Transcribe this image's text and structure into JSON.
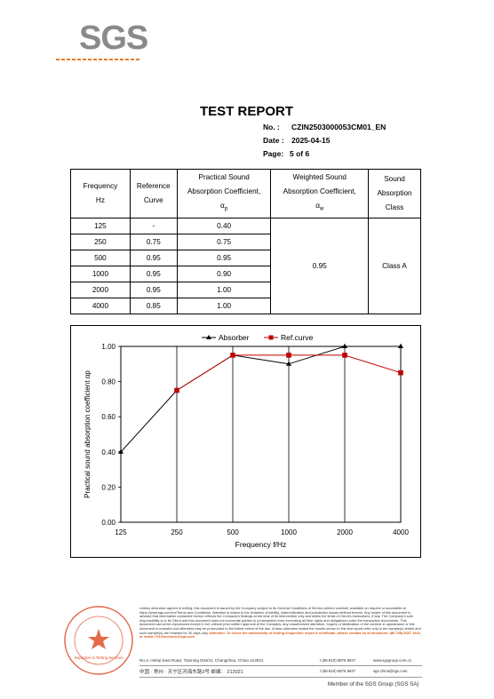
{
  "logo": {
    "text": "SGS"
  },
  "header": {
    "title": "TEST REPORT",
    "no_label": "No. :",
    "no_value": "CZIN2503000053CM01_EN",
    "date_label": "Date :",
    "date_value": "2025-04-15",
    "page_label": "Page:",
    "page_value": "5 of 6"
  },
  "table": {
    "headers": {
      "frequency": [
        "Frequency",
        "Hz"
      ],
      "reference": [
        "Reference",
        "Curve"
      ],
      "practical": [
        "Practical Sound",
        "Absorption Coefficient,",
        "αp"
      ],
      "weighted": [
        "Weighted Sound",
        "Absorption Coefficient,",
        "αw"
      ],
      "class": [
        "Sound",
        "Absorption",
        "Class"
      ]
    },
    "rows": [
      {
        "freq": "125",
        "ref": "-",
        "ap": "0.40"
      },
      {
        "freq": "250",
        "ref": "0.75",
        "ap": "0.75"
      },
      {
        "freq": "500",
        "ref": "0.95",
        "ap": "0.95"
      },
      {
        "freq": "1000",
        "ref": "0.95",
        "ap": "0.90"
      },
      {
        "freq": "2000",
        "ref": "0.95",
        "ap": "1.00"
      },
      {
        "freq": "4000",
        "ref": "0.85",
        "ap": "1.00"
      }
    ],
    "weighted_value": "0.95",
    "class_value": "Class A"
  },
  "chart_data": {
    "type": "line",
    "categories": [
      "125",
      "250",
      "500",
      "1000",
      "2000",
      "4000"
    ],
    "series": [
      {
        "name": "Absorber",
        "values": [
          0.4,
          0.75,
          0.95,
          0.9,
          1.0,
          1.0
        ],
        "color": "#000000",
        "marker": "triangle"
      },
      {
        "name": "Ref.curve",
        "values": [
          null,
          0.75,
          0.95,
          0.95,
          0.95,
          0.85
        ],
        "color": "#c00000",
        "marker": "square"
      }
    ],
    "ylim": [
      0,
      1.0
    ],
    "yticks": [
      "0.00",
      "0.20",
      "0.40",
      "0.60",
      "0.80",
      "1.00"
    ],
    "xlabel": "Frequency f/Hz",
    "ylabel": "Practical sound absorption coefficient αp",
    "grid": "vertical",
    "legend": "top"
  },
  "footer": {
    "disclaimer": "Unless otherwise agreed in writing, this document is issued by the Company subject to its General Conditions of Service printed overleaf, available on request or accessible at https://www.sgs.com/en/Terms-and-Conditions. Attention is drawn to the limitation of liability, indemnification and jurisdiction issues defined therein. Any holder of this document is advised that information contained hereon reflects the Company's findings at the time of its intervention only and within the limits of Client's instructions, if any. The Company's sole responsibility is to its Client and this document does not exonerate parties to a transaction from exercising all their rights and obligations under the transaction documents. This document cannot be reproduced except in full, without prior written approval of the Company. Any unauthorized alteration, forgery or falsification of the content or appearance of this document is unlawful and offenders may be prosecuted to the fullest extent of the law. Unless otherwise stated the results shown in this test report refer only to the sample(s) tested and such sample(s) are retained for 30 days only.",
    "attention": "Attention: To check the authenticity of testing /inspection report & certificate, please contact us at telephone: (86-755) 8307 1443, or email: CN.Doccheck@sgs.com",
    "address_en": "No.3, Hehai East Road, Tianning District, Changzhou, China   213021",
    "address_cn": "中国 · 常州 · 天宁区河海东路3号   邮编： 213021",
    "phone1": "t (86-519) 8876 9637",
    "phone2": "t (86-519) 8876 9637",
    "web1": "www.sgsgroup.com.cn",
    "web2": "sgs.china@sgs.com",
    "member": "Member of the SGS Group (SGS SA)",
    "stamp_text": "Inspection & Testing Services"
  }
}
